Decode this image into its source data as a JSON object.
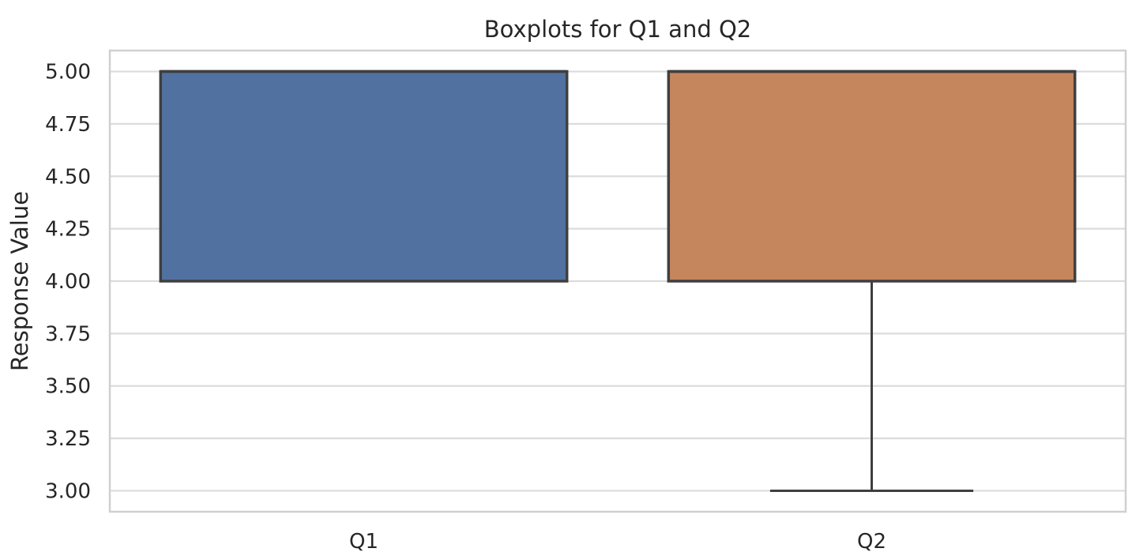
{
  "chart_data": {
    "type": "boxplot",
    "title": "Boxplots for Q1 and Q2",
    "xlabel": "",
    "ylabel": "Response Value",
    "categories": [
      "Q1",
      "Q2"
    ],
    "ylim": [
      2.9,
      5.1
    ],
    "yticks": [
      3.0,
      3.25,
      3.5,
      3.75,
      4.0,
      4.25,
      4.5,
      4.75,
      5.0
    ],
    "ytick_labels": [
      "3.00",
      "3.25",
      "3.50",
      "3.75",
      "4.00",
      "4.25",
      "4.50",
      "4.75",
      "5.00"
    ],
    "grid": true,
    "boxes": [
      {
        "category": "Q1",
        "whislo": 4.0,
        "q1": 4.0,
        "median": 5.0,
        "q3": 5.0,
        "whishi": 5.0
      },
      {
        "category": "Q2",
        "whislo": 3.0,
        "q1": 4.0,
        "median": 5.0,
        "q3": 5.0,
        "whishi": 5.0
      }
    ],
    "colors": [
      "#5172a1",
      "#c6865d"
    ],
    "edge_color": "#3f3f3f",
    "grid_color": "#dcdcdc",
    "frame_color": "#d0d0d0"
  }
}
